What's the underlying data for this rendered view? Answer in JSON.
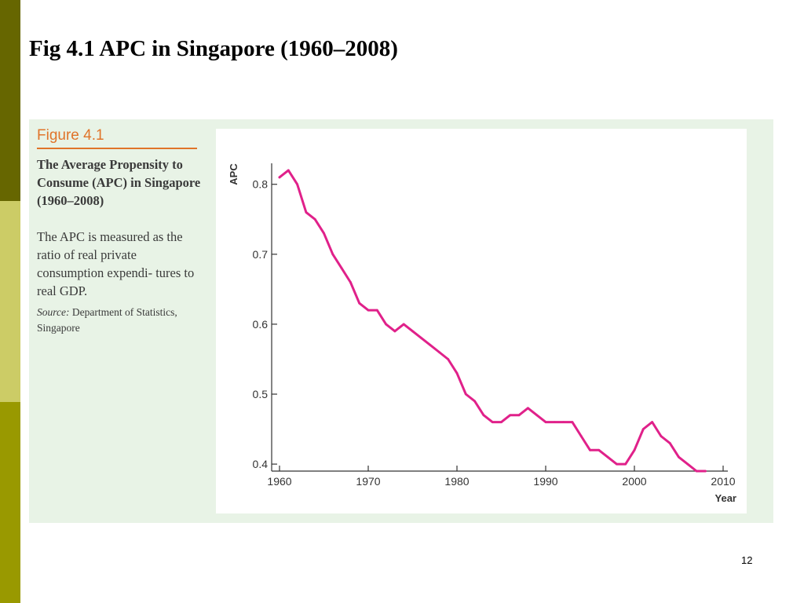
{
  "slide": {
    "title": "Fig 4.1 APC in Singapore (1960–2008)",
    "page_number": "12",
    "accent_colors": [
      "#666600",
      "#cccc66",
      "#999900"
    ]
  },
  "figure": {
    "label": "Figure 4.1",
    "caption_title": "The Average Propensity to Consume (APC) in Singapore (1960–2008)",
    "description": "The APC is measured as the ratio of real private consumption expendi- tures to real GDP.",
    "source_label": "Source:",
    "source_text": "Department of Statistics, Singapore",
    "panel_color": "#e8f3e6",
    "label_color": "#e0742a"
  },
  "chart_data": {
    "type": "line",
    "title": "",
    "xlabel": "Year",
    "ylabel": "APC",
    "xlim": [
      1960,
      2010
    ],
    "ylim": [
      0.39,
      0.83
    ],
    "xticks": [
      1960,
      1970,
      1980,
      1990,
      2000,
      2010
    ],
    "yticks": [
      0.4,
      0.5,
      0.6,
      0.7,
      0.8
    ],
    "ytick_labels": [
      "0.4",
      "0.5",
      "0.6",
      "0.7",
      "0.8"
    ],
    "grid": false,
    "line_color": "#e0218a",
    "series": [
      {
        "x": [
          1960,
          1961,
          1962,
          1963,
          1964,
          1965,
          1966,
          1967,
          1968,
          1969,
          1970,
          1971,
          1972,
          1973,
          1974,
          1975,
          1976,
          1977,
          1978,
          1979,
          1980,
          1981,
          1982,
          1983,
          1984,
          1985,
          1986,
          1987,
          1988,
          1989,
          1990,
          1991,
          1992,
          1993,
          1994,
          1995,
          1996,
          1997,
          1998,
          1999,
          2000,
          2001,
          2002,
          2003,
          2004,
          2005,
          2006,
          2007,
          2008
        ],
        "values": [
          0.81,
          0.82,
          0.8,
          0.76,
          0.75,
          0.73,
          0.7,
          0.68,
          0.66,
          0.63,
          0.62,
          0.62,
          0.6,
          0.59,
          0.6,
          0.59,
          0.58,
          0.57,
          0.56,
          0.55,
          0.53,
          0.5,
          0.49,
          0.47,
          0.46,
          0.46,
          0.47,
          0.47,
          0.48,
          0.47,
          0.46,
          0.46,
          0.46,
          0.46,
          0.44,
          0.42,
          0.42,
          0.41,
          0.4,
          0.4,
          0.42,
          0.45,
          0.46,
          0.44,
          0.43,
          0.41,
          0.4,
          0.39,
          0.39
        ]
      }
    ]
  }
}
